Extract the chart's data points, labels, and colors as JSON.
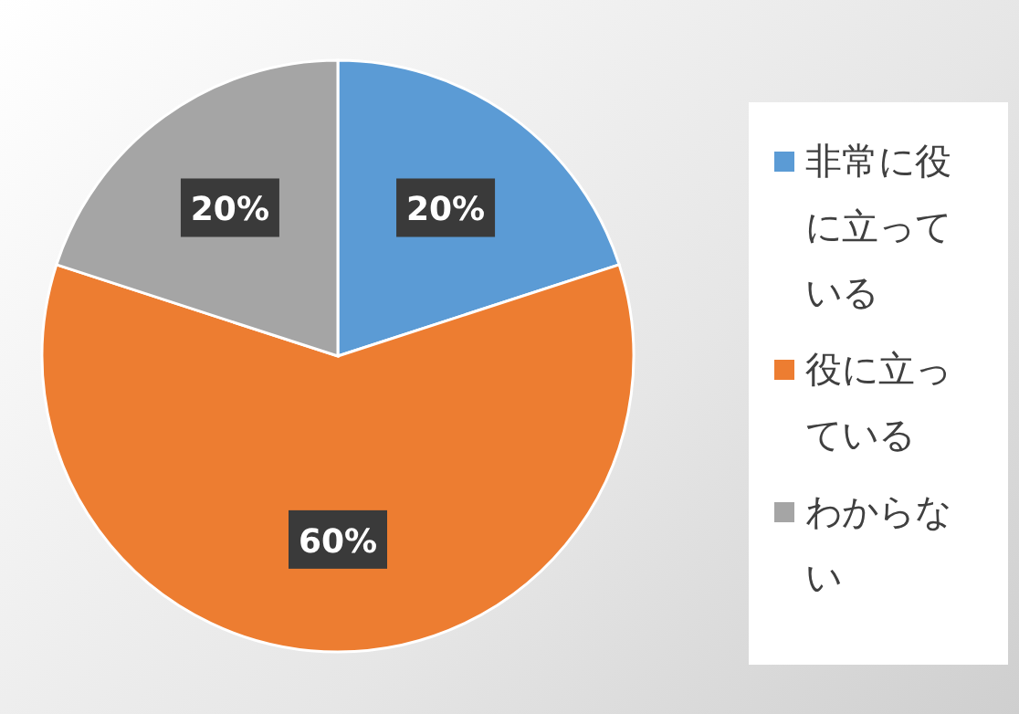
{
  "chart_data": {
    "type": "pie",
    "categories": [
      "非常に役に立っている",
      "役に立っている",
      "わからない"
    ],
    "values": [
      20,
      60,
      20
    ],
    "colors": [
      "#5b9bd5",
      "#ed7d31",
      "#a5a5a5"
    ],
    "value_labels": [
      "20%",
      "60%",
      "20%"
    ],
    "legend": "right"
  }
}
